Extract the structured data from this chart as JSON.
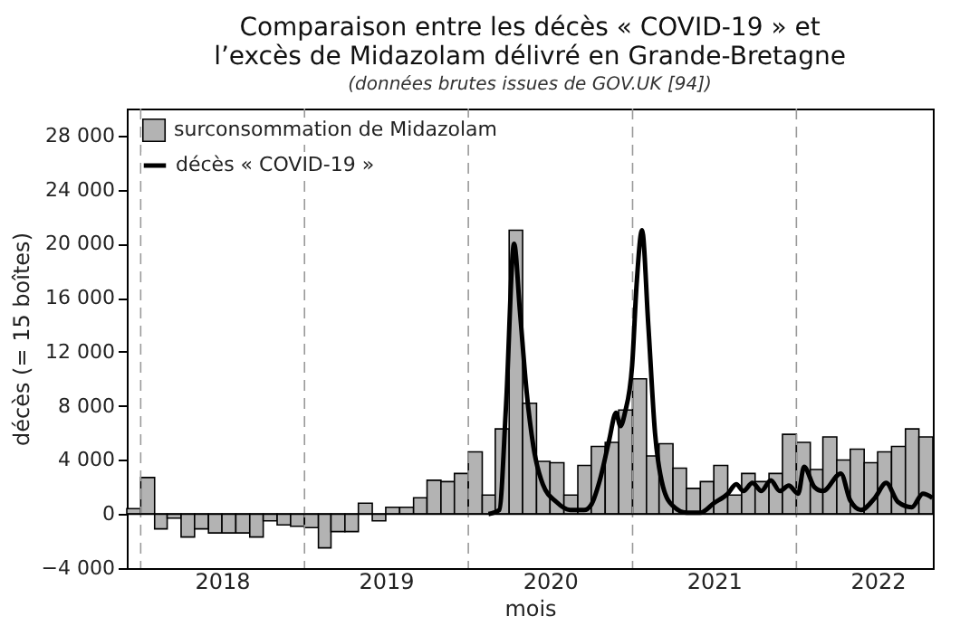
{
  "chart_data": {
    "type": "bar",
    "title": "Comparaison entre les décès « COVID-19 » et\nl’excès de Midazolam délivré en Grande-Bretagne",
    "subtitle": "(données brutes issues de GOV.UK [94])",
    "xlabel": "mois",
    "ylabel": "décès (= 15 boîtes)",
    "x": [
      "2017-12-16",
      "2018-01-16",
      "2018-02-15",
      "2018-03-16",
      "2018-04-16",
      "2018-05-16",
      "2018-06-16",
      "2018-07-16",
      "2018-08-16",
      "2018-09-16",
      "2018-10-16",
      "2018-11-16",
      "2018-12-16",
      "2019-01-16",
      "2019-02-15",
      "2019-03-16",
      "2019-04-16",
      "2019-05-16",
      "2019-06-16",
      "2019-07-16",
      "2019-08-16",
      "2019-09-16",
      "2019-10-16",
      "2019-11-16",
      "2019-12-16",
      "2020-01-16",
      "2020-02-15",
      "2020-03-16",
      "2020-04-16",
      "2020-05-16",
      "2020-06-16",
      "2020-07-16",
      "2020-08-16",
      "2020-09-16",
      "2020-10-16",
      "2020-11-16",
      "2020-12-16",
      "2021-01-16",
      "2021-02-15",
      "2021-03-16",
      "2021-04-16",
      "2021-05-16",
      "2021-06-16",
      "2021-07-16",
      "2021-08-16",
      "2021-09-16",
      "2021-10-16",
      "2021-11-16",
      "2021-12-16",
      "2022-01-16",
      "2022-02-15",
      "2022-03-16",
      "2022-04-16",
      "2022-05-16",
      "2022-06-16",
      "2022-07-16",
      "2022-08-16",
      "2022-09-16",
      "2022-10-16"
    ],
    "series": [
      {
        "name": "surconsommation de Midazolam",
        "color": "#b3b3b3",
        "values": [
          400,
          2700,
          -1100,
          -300,
          -1700,
          -1100,
          -1400,
          -1400,
          -1400,
          -1700,
          -500,
          -800,
          -900,
          -1000,
          -2500,
          -1300,
          -1300,
          800,
          -500,
          500,
          500,
          1200,
          2500,
          2400,
          3000,
          4600,
          1400,
          6300,
          21000,
          8200,
          3900,
          3800,
          1400,
          3600,
          5000,
          5300,
          7700,
          10000,
          4300,
          5200,
          3400,
          1900,
          2400,
          3600,
          1400,
          3000,
          2400,
          3000,
          5900,
          5300,
          3300,
          5700,
          4000,
          4800,
          3800,
          4600,
          5000,
          6300,
          5700
        ]
      },
      {
        "name": "décès « COVID-19 »",
        "type": "line",
        "color": "#000000",
        "x": [
          "2020-02-15",
          "2020-03-10",
          "2020-03-25",
          "2020-04-12",
          "2020-04-25",
          "2020-05-10",
          "2020-05-25",
          "2020-06-15",
          "2020-07-15",
          "2020-08-15",
          "2020-09-15",
          "2020-10-01",
          "2020-10-20",
          "2020-11-10",
          "2020-11-25",
          "2020-12-05",
          "2020-12-15",
          "2020-12-31",
          "2021-01-10",
          "2021-01-22",
          "2021-02-05",
          "2021-02-20",
          "2021-03-10",
          "2021-04-01",
          "2021-05-01",
          "2021-06-01",
          "2021-07-01",
          "2021-08-01",
          "2021-08-20",
          "2021-09-05",
          "2021-09-25",
          "2021-10-15",
          "2021-11-05",
          "2021-11-25",
          "2021-12-15",
          "2022-01-05",
          "2022-01-18",
          "2022-02-10",
          "2022-03-01",
          "2022-04-10",
          "2022-05-01",
          "2022-05-25",
          "2022-06-25",
          "2022-07-20",
          "2022-08-15",
          "2022-09-15",
          "2022-10-10",
          "2022-10-31"
        ],
        "values": [
          0,
          300,
          8000,
          20000,
          15000,
          9000,
          5000,
          2200,
          900,
          300,
          300,
          700,
          2500,
          5500,
          7500,
          6500,
          7500,
          11000,
          17000,
          21000,
          14000,
          6000,
          2000,
          600,
          100,
          100,
          800,
          1500,
          2200,
          1700,
          2300,
          1700,
          2500,
          1700,
          2100,
          1500,
          3500,
          2000,
          1700,
          3000,
          1000,
          300,
          1200,
          2300,
          900,
          500,
          1500,
          1200
        ]
      }
    ],
    "xlim": [
      "2017-12",
      "2022-11"
    ],
    "xticks": [
      {
        "value": "2018-07",
        "label": "2018"
      },
      {
        "value": "2019-07",
        "label": "2019"
      },
      {
        "value": "2020-07",
        "label": "2020"
      },
      {
        "value": "2021-07",
        "label": "2021"
      },
      {
        "value": "2022-07",
        "label": "2022"
      }
    ],
    "ylim": [
      -4000,
      30000
    ],
    "yticks": [
      {
        "value": -4000,
        "label": "−4 000"
      },
      {
        "value": 0,
        "label": "0"
      },
      {
        "value": 4000,
        "label": "4 000"
      },
      {
        "value": 8000,
        "label": "8 000"
      },
      {
        "value": 12000,
        "label": "12 000"
      },
      {
        "value": 16000,
        "label": "16 000"
      },
      {
        "value": 20000,
        "label": "20 000"
      },
      {
        "value": 24000,
        "label": "24 000"
      },
      {
        "value": 28000,
        "label": "28 000"
      }
    ],
    "ref_lines": [
      {
        "axis": "x",
        "value": "2018-01",
        "color": "#999999",
        "line_style": "dashed"
      },
      {
        "axis": "x",
        "value": "2019-01",
        "color": "#999999",
        "line_style": "dashed"
      },
      {
        "axis": "x",
        "value": "2020-01",
        "color": "#999999",
        "line_style": "dashed"
      },
      {
        "axis": "x",
        "value": "2021-01",
        "color": "#999999",
        "line_style": "dashed"
      },
      {
        "axis": "x",
        "value": "2022-01",
        "color": "#999999",
        "line_style": "dashed"
      },
      {
        "axis": "y",
        "value": 0,
        "color": "#000000",
        "line_style": "solid"
      }
    ],
    "legend": "top left",
    "marker": "none",
    "grid": false
  }
}
